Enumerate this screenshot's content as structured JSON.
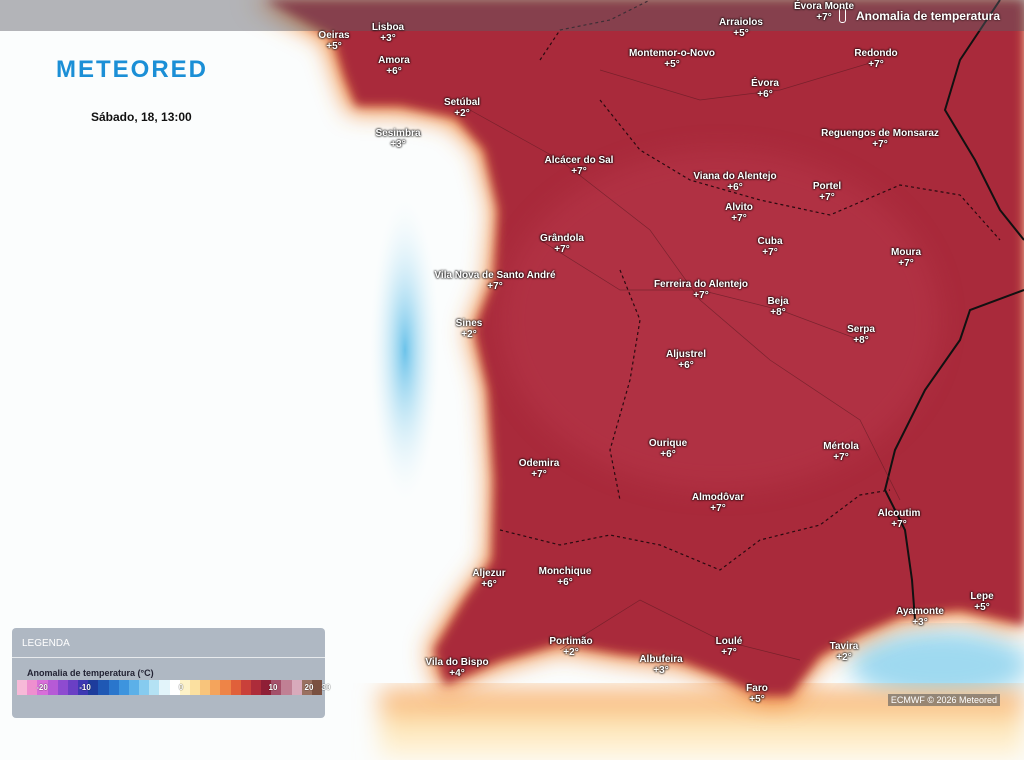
{
  "header": {
    "logo": "METEORED",
    "layer": "Anomalia de temperatura",
    "date": "Sábado, 18, 13:00"
  },
  "legend": {
    "title": "LEGENDA",
    "subtitle": "Anomalia de temperatura (°C)",
    "ticks": [
      "-20",
      "-10",
      "0",
      "10",
      "20",
      "30"
    ]
  },
  "credit": "ECMWF © 2026 Meteored",
  "places": [
    {
      "name": "Lisboa",
      "anomaly": "+3°"
    },
    {
      "name": "Oeiras",
      "anomaly": "+5°"
    },
    {
      "name": "Amora",
      "anomaly": "+6°"
    },
    {
      "name": "Setúbal",
      "anomaly": "+2°"
    },
    {
      "name": "Sesimbra",
      "anomaly": "+3°"
    },
    {
      "name": "Arraiolos",
      "anomaly": "+5°"
    },
    {
      "name": "Évora Monte",
      "anomaly": "+7°"
    },
    {
      "name": "Montemor-o-Novo",
      "anomaly": "+5°"
    },
    {
      "name": "Redondo",
      "anomaly": "+7°"
    },
    {
      "name": "Évora",
      "anomaly": "+6°"
    },
    {
      "name": "Reguengos de Monsaraz",
      "anomaly": "+7°"
    },
    {
      "name": "Alcácer do Sal",
      "anomaly": "+7°"
    },
    {
      "name": "Viana do Alentejo",
      "anomaly": "+6°"
    },
    {
      "name": "Portel",
      "anomaly": "+7°"
    },
    {
      "name": "Alvito",
      "anomaly": "+7°"
    },
    {
      "name": "Cuba",
      "anomaly": "+7°"
    },
    {
      "name": "Grândola",
      "anomaly": "+7°"
    },
    {
      "name": "Moura",
      "anomaly": "+7°"
    },
    {
      "name": "Vila Nova de Santo André",
      "anomaly": "+7°"
    },
    {
      "name": "Ferreira do Alentejo",
      "anomaly": "+7°"
    },
    {
      "name": "Beja",
      "anomaly": "+8°"
    },
    {
      "name": "Sines",
      "anomaly": "+2°"
    },
    {
      "name": "Serpa",
      "anomaly": "+8°"
    },
    {
      "name": "Aljustrel",
      "anomaly": "+6°"
    },
    {
      "name": "Ourique",
      "anomaly": "+6°"
    },
    {
      "name": "Mértola",
      "anomaly": "+7°"
    },
    {
      "name": "Odemira",
      "anomaly": "+7°"
    },
    {
      "name": "Almodôvar",
      "anomaly": "+7°"
    },
    {
      "name": "Alcoutim",
      "anomaly": "+7°"
    },
    {
      "name": "Aljezur",
      "anomaly": "+6°"
    },
    {
      "name": "Monchique",
      "anomaly": "+6°"
    },
    {
      "name": "Lepe",
      "anomaly": "+5°"
    },
    {
      "name": "Ayamonte",
      "anomaly": "+3°"
    },
    {
      "name": "Portimão",
      "anomaly": "+2°"
    },
    {
      "name": "Loulé",
      "anomaly": "+7°"
    },
    {
      "name": "Tavira",
      "anomaly": "+2°"
    },
    {
      "name": "Albufeira",
      "anomaly": "+3°"
    },
    {
      "name": "Vila do Bispo",
      "anomaly": "+4°"
    },
    {
      "name": "Faro",
      "anomaly": "+5°"
    }
  ]
}
